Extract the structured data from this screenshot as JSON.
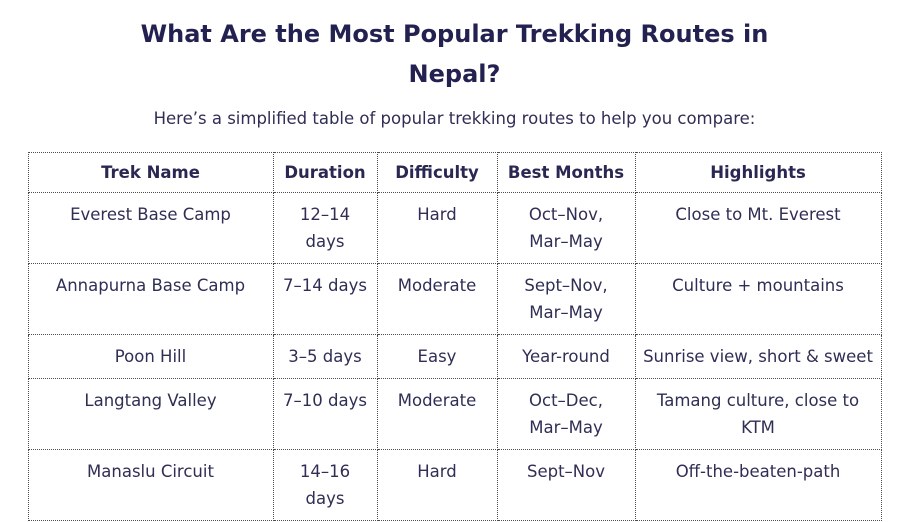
{
  "page": {
    "title": "What Are the Most Popular Trekking Routes in Nepal?",
    "subtitle": "Here’s a simplified table of popular trekking routes to help you compare:"
  },
  "table": {
    "columns": [
      "Trek Name",
      "Duration",
      "Difficulty",
      "Best Months",
      "Highlights"
    ],
    "rows": [
      [
        "Everest Base Camp",
        "12–14\ndays",
        "Hard",
        "Oct–Nov,\nMar–May",
        "Close to Mt. Everest"
      ],
      [
        "Annapurna Base Camp",
        "7–14 days",
        "Moderate",
        "Sept–Nov,\nMar–May",
        "Culture + mountains"
      ],
      [
        "Poon Hill",
        "3–5 days",
        "Easy",
        "Year-round",
        "Sunrise view, short & sweet"
      ],
      [
        "Langtang Valley",
        "7–10 days",
        "Moderate",
        "Oct–Dec,\nMar–May",
        "Tamang culture, close to\nKTM"
      ],
      [
        "Manaslu Circuit",
        "14–16\ndays",
        "Hard",
        "Sept–Nov",
        "Off-the-beaten-path"
      ]
    ]
  },
  "colors": {
    "title_text": "#232150",
    "body_text": "#2f2e55",
    "table_border": "#4d4d4d",
    "background": "#ffffff"
  }
}
